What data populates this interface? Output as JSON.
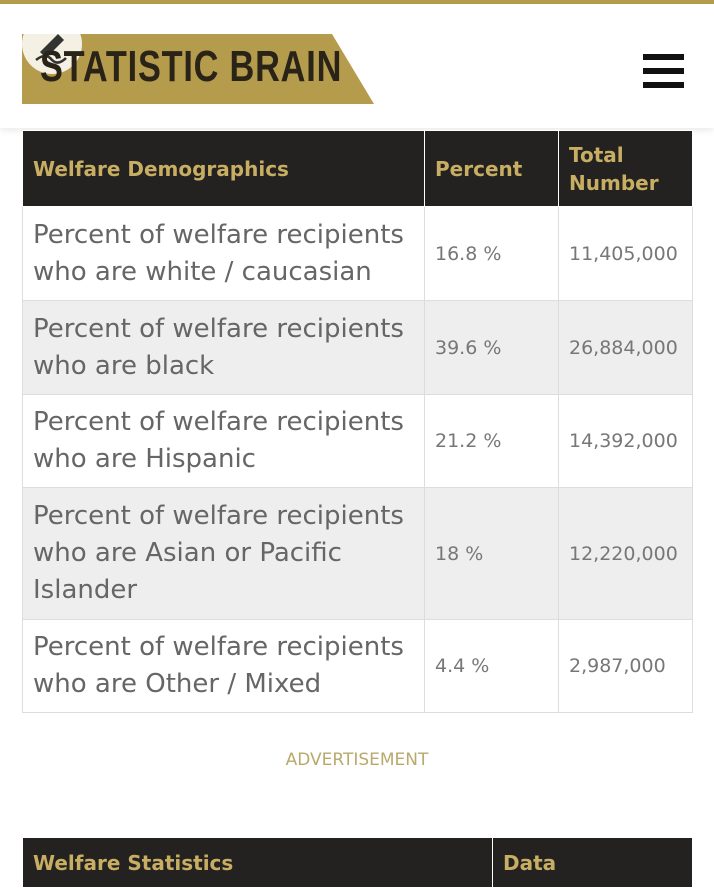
{
  "header": {
    "logo": "STATISTIC BRAIN"
  },
  "table": {
    "headers": [
      "Welfare Demographics",
      "Percent",
      "Total Number"
    ],
    "rows": [
      [
        "Percent of welfare recipients who are white / caucasian",
        "16.8 %",
        "11,405,000"
      ],
      [
        "Percent of welfare recipients who are black",
        "39.6 %",
        "26,884,000"
      ],
      [
        "Percent of welfare recipients who are Hispanic",
        "21.2 %",
        "14,392,000"
      ],
      [
        "Percent of welfare recipients who are Asian or Pacific Islander",
        "18 %",
        "12,220,000"
      ],
      [
        "Percent of welfare recipients who are Other / Mixed",
        "4.4 %",
        "2,987,000"
      ]
    ]
  },
  "advertisement": "ADVERTISEMENT",
  "table2": {
    "headers": [
      "Welfare Statistics",
      "Data"
    ]
  }
}
